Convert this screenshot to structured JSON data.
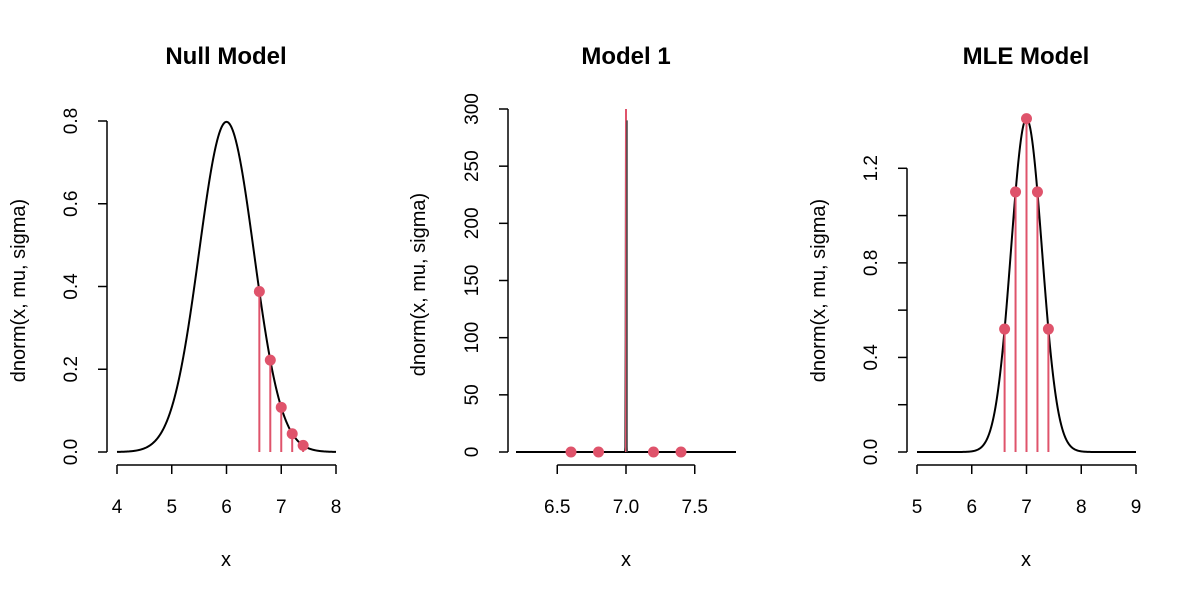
{
  "colors": {
    "curve": "#000000",
    "observed": "#DF536B"
  },
  "chart_data": [
    {
      "type": "line",
      "title": "Null Model",
      "xlabel": "x",
      "ylabel": "dnorm(x, mu, sigma)",
      "mu": 6,
      "sigma": 0.5,
      "xlim": [
        4,
        8
      ],
      "ylim": [
        0,
        0.8
      ],
      "xticks": [
        4,
        5,
        6,
        7,
        8
      ],
      "yticks": [
        0.0,
        0.2,
        0.4,
        0.6,
        0.8
      ],
      "ytick_labels": [
        "0.0",
        "0.2",
        "0.4",
        "0.6",
        "0.8"
      ],
      "points": {
        "x": [
          6.6,
          6.8,
          7.0,
          7.2,
          7.4
        ],
        "y": [
          0.388,
          0.222,
          0.108,
          0.044,
          0.016
        ]
      }
    },
    {
      "type": "line",
      "title": "Model 1",
      "xlabel": "x",
      "ylabel": "dnorm(x, mu, sigma)",
      "mu": 7,
      "sigma": 0.00138,
      "xlim": [
        6.2,
        7.8
      ],
      "ylim": [
        0,
        300
      ],
      "xticks": [
        6.5,
        7.0,
        7.5
      ],
      "xtick_labels": [
        "6.5",
        "7.0",
        "7.5"
      ],
      "yticks": [
        0,
        50,
        100,
        150,
        200,
        250,
        300
      ],
      "ytick_labels": [
        "0",
        "50",
        "100",
        "150",
        "200",
        "250",
        "300"
      ],
      "points": {
        "x": [
          6.6,
          6.8,
          7.0,
          7.2,
          7.4
        ],
        "y": [
          0,
          0,
          290,
          0,
          0
        ]
      }
    },
    {
      "type": "line",
      "title": "MLE Model",
      "xlabel": "x",
      "ylabel": "dnorm(x, mu, sigma)",
      "mu": 7,
      "sigma": 0.283,
      "xlim": [
        5,
        9
      ],
      "ylim": [
        0,
        1.4
      ],
      "xticks": [
        5,
        6,
        7,
        8,
        9
      ],
      "yticks": [
        0.0,
        0.2,
        0.4,
        0.6,
        0.8,
        1.0,
        1.2
      ],
      "ytick_labels": [
        "0.0",
        "",
        "0.4",
        "",
        "0.8",
        "",
        "1.2"
      ],
      "points": {
        "x": [
          6.6,
          6.8,
          7.0,
          7.2,
          7.4
        ],
        "y": [
          0.52,
          1.1,
          1.41,
          1.1,
          0.52
        ]
      }
    }
  ]
}
